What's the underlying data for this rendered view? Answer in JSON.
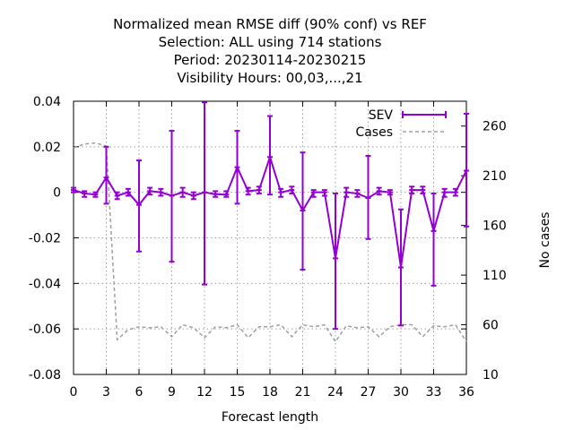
{
  "chart_data": {
    "type": "line",
    "title_lines": [
      "Normalized mean RMSE diff (90% conf) vs REF",
      "Selection: ALL using   714 stations",
      "Period: 20230114-20230215",
      "Visibility   Hours:  00,03,...,21"
    ],
    "xlabel": "Forecast length",
    "ylabel_right": "No cases",
    "xlim": [
      0,
      36
    ],
    "ylim": [
      -0.08,
      0.04
    ],
    "y2lim": [
      10,
      285
    ],
    "x_ticks": [
      0,
      3,
      6,
      9,
      12,
      15,
      18,
      21,
      24,
      27,
      30,
      33,
      36
    ],
    "y_ticks": [
      0.04,
      0.02,
      0,
      -0.02,
      -0.04,
      -0.06,
      -0.08
    ],
    "y_tick_labels": [
      "0.04",
      "0.02",
      "0",
      "-0.02",
      "-0.04",
      "-0.06",
      "-0.08"
    ],
    "y2_ticks": [
      260,
      210,
      160,
      110,
      60,
      10
    ],
    "grid": true,
    "legend_position": "top-right",
    "colors": {
      "SEV": "#9400d3",
      "Cases": "#a0a0a0"
    },
    "x": [
      0,
      1,
      2,
      3,
      4,
      5,
      6,
      7,
      8,
      9,
      10,
      11,
      12,
      13,
      14,
      15,
      16,
      17,
      18,
      19,
      20,
      21,
      22,
      23,
      24,
      25,
      26,
      27,
      28,
      29,
      30,
      31,
      32,
      33,
      34,
      35,
      36
    ],
    "series": [
      {
        "name": "SEV",
        "style": "line-errorbars",
        "values": [
          0.001,
          -0.0005,
          -0.001,
          0.0065,
          -0.0015,
          0.0,
          -0.0055,
          0.0005,
          0.0,
          -0.0015,
          0.0,
          -0.0015,
          0.0,
          -0.0008,
          -0.001,
          0.011,
          0.0005,
          0.001,
          0.0155,
          0.0,
          0.001,
          -0.008,
          0.0,
          0.0,
          -0.029,
          0.0,
          -0.0005,
          -0.0025,
          0.0005,
          0.0,
          -0.033,
          0.001,
          0.001,
          -0.017,
          0.0,
          0.0,
          0.0095
        ],
        "err_low": [
          0.0,
          -0.002,
          -0.002,
          -0.005,
          -0.003,
          -0.0015,
          -0.026,
          -0.001,
          -0.0015,
          -0.0305,
          -0.002,
          -0.003,
          -0.0405,
          -0.002,
          -0.002,
          -0.005,
          -0.001,
          -0.0005,
          -0.001,
          -0.002,
          -0.0005,
          -0.034,
          -0.002,
          -0.0015,
          -0.06,
          -0.002,
          -0.002,
          -0.0205,
          -0.001,
          -0.001,
          -0.0585,
          -0.0005,
          -0.0005,
          -0.041,
          -0.002,
          -0.0015,
          -0.015
        ],
        "err_high": [
          0.002,
          0.0005,
          0.0,
          0.02,
          0.0,
          0.0015,
          0.014,
          0.002,
          0.0015,
          0.027,
          0.002,
          0.0,
          0.0395,
          0.0005,
          0.0005,
          0.027,
          0.002,
          0.0025,
          0.0335,
          0.0015,
          0.0025,
          0.0175,
          0.001,
          0.001,
          -0.0005,
          0.002,
          0.001,
          0.016,
          0.002,
          0.001,
          -0.0075,
          0.0025,
          0.0025,
          -0.0005,
          0.0015,
          0.0015,
          0.0345
        ]
      },
      {
        "name": "Cases",
        "style": "dashed",
        "axis": "y2",
        "values": [
          238,
          242,
          243,
          240,
          45,
          55,
          58,
          57,
          58,
          48,
          60,
          57,
          47,
          58,
          57,
          60,
          47,
          58,
          58,
          60,
          48,
          60,
          58,
          60,
          43,
          59,
          57,
          58,
          48,
          58,
          60,
          60,
          48,
          59,
          58,
          60,
          43
        ]
      }
    ]
  }
}
